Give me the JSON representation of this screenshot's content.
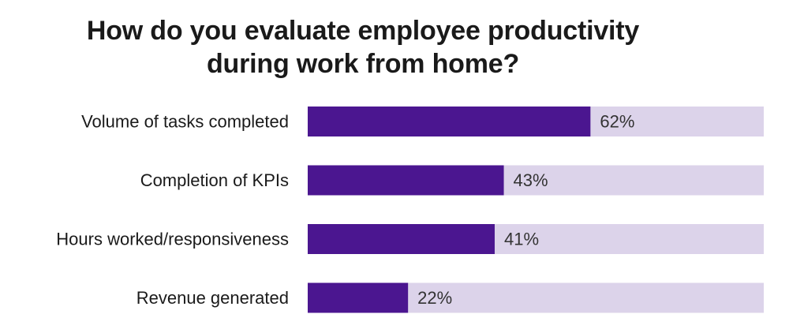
{
  "chart_data": {
    "type": "bar",
    "orientation": "horizontal",
    "title_lines": [
      "How do you evaluate employee productivity",
      "during work from home?"
    ],
    "categories": [
      "Volume of tasks completed",
      "Completion of KPIs",
      "Hours worked/responsiveness",
      "Revenue generated"
    ],
    "values": [
      62,
      43,
      41,
      22
    ],
    "value_labels": [
      "62%",
      "43%",
      "41%",
      "22%"
    ],
    "xlim": [
      0,
      100
    ],
    "grid": false,
    "legend": "none",
    "colors": {
      "bar": "#4b1690",
      "track": "#dcd3ea",
      "label_text": "#1a1a1a",
      "value_text": "#333333"
    }
  }
}
